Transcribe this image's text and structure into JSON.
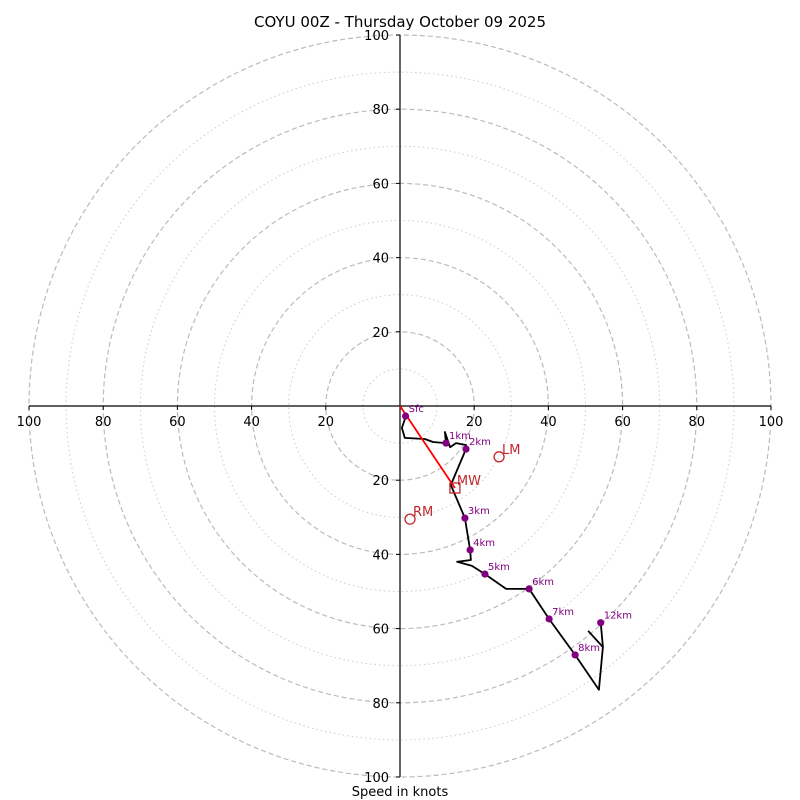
{
  "chart_data": {
    "type": "line",
    "subtype": "hodograph",
    "title": "COYU 00Z - Thursday October 09 2025",
    "xlabel": "Speed in knots",
    "ylabel": "",
    "xlim": [
      -100,
      100
    ],
    "ylim": [
      -100,
      100
    ],
    "x_ticks": [
      100,
      80,
      60,
      40,
      20,
      20,
      40,
      60,
      80,
      100
    ],
    "x_tick_values": [
      -100,
      -80,
      -60,
      -40,
      -20,
      20,
      40,
      60,
      80,
      100
    ],
    "y_ticks": [
      100,
      80,
      60,
      40,
      20,
      20,
      40,
      60,
      80,
      100
    ],
    "y_tick_values": [
      100,
      80,
      60,
      40,
      20,
      -20,
      -40,
      -60,
      -80,
      -100
    ],
    "rings": {
      "dashed": [
        20,
        40,
        60,
        80,
        100
      ],
      "dotted": [
        10,
        30,
        50,
        70,
        90
      ]
    },
    "grid": true,
    "hodograph_trace": {
      "name": "wind profile",
      "color": "#000000",
      "u": [
        1.6,
        0.5,
        1.3,
        6.7,
        8.9,
        12.4,
        12.1,
        13.5,
        15.1,
        17.8,
        17.8,
        13.7,
        17.5,
        18.9,
        19.1,
        15.4,
        19.4,
        22.9,
        28.6,
        34.8,
        40.2,
        47.2,
        53.6,
        54.7,
        50.7
      ],
      "v": [
        -2.7,
        -5.9,
        -8.6,
        -8.9,
        -9.7,
        -10.0,
        -7.0,
        -11.1,
        -10.0,
        -10.5,
        -11.6,
        -21.3,
        -30.2,
        -38.8,
        -41.5,
        -42.0,
        -43.1,
        -45.3,
        -49.3,
        -49.3,
        -57.4,
        -67.1,
        -76.5,
        -65.0,
        -60.6
      ]
    },
    "upper_segment": {
      "u": [
        54.7,
        54.1
      ],
      "v": [
        -65.0,
        -58.4
      ]
    },
    "height_markers": [
      {
        "label": "Sfc",
        "u": 1.5,
        "v": -2.7
      },
      {
        "label": "1km",
        "u": 12.4,
        "v": -10.0
      },
      {
        "label": "2km",
        "u": 17.8,
        "v": -11.6
      },
      {
        "label": "3km",
        "u": 17.5,
        "v": -30.2
      },
      {
        "label": "4km",
        "u": 18.9,
        "v": -38.8
      },
      {
        "label": "5km",
        "u": 22.9,
        "v": -45.3
      },
      {
        "label": "6km",
        "u": 34.8,
        "v": -49.3
      },
      {
        "label": "7km",
        "u": 40.2,
        "v": -57.4
      },
      {
        "label": "8km",
        "u": 47.2,
        "v": -67.1
      },
      {
        "label": "12km",
        "u": 54.1,
        "v": -58.4
      }
    ],
    "marker_color": "#800080",
    "storm_motion": {
      "color": "#c0282d",
      "mean_wind": {
        "label": "MW",
        "u": 14.8,
        "v": -22.1,
        "shape": "square"
      },
      "left_mover": {
        "label": "LM",
        "u": 26.7,
        "v": -13.7,
        "shape": "circle"
      },
      "right_mover": {
        "label": "RM",
        "u": 2.7,
        "v": -30.5,
        "shape": "circle"
      },
      "vector_color": "#ff0000"
    }
  }
}
